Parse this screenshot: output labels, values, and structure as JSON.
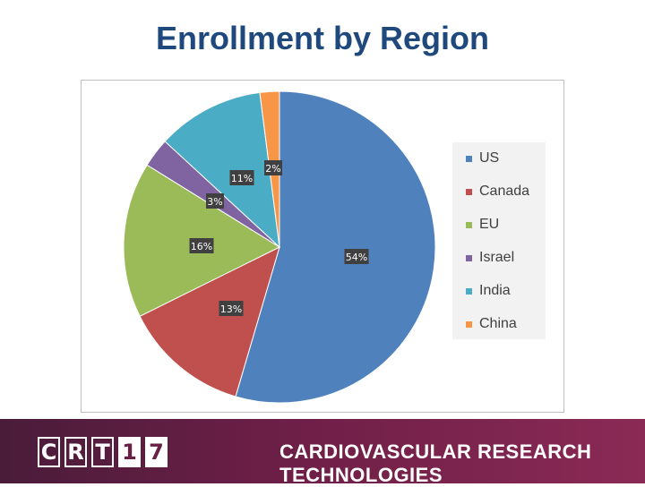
{
  "page": {
    "title": "Enrollment by Region"
  },
  "chart_data": {
    "type": "pie",
    "categories": [
      "US",
      "Canada",
      "EU",
      "Israel",
      "India",
      "China"
    ],
    "values": [
      54,
      13,
      16,
      3,
      11,
      2
    ],
    "labels": [
      "54%",
      "13%",
      "16%",
      "3%",
      "11%",
      "2%"
    ],
    "colors": [
      "#4f81bd",
      "#c0504d",
      "#9bbb59",
      "#8064a2",
      "#4bacc6",
      "#f79646"
    ],
    "legend_position": "right"
  },
  "footer": {
    "logo_letters": [
      "C",
      "R",
      "T",
      "1",
      "7"
    ],
    "text": "CARDIOVASCULAR RESEARCH TECHNOLOGIES"
  }
}
